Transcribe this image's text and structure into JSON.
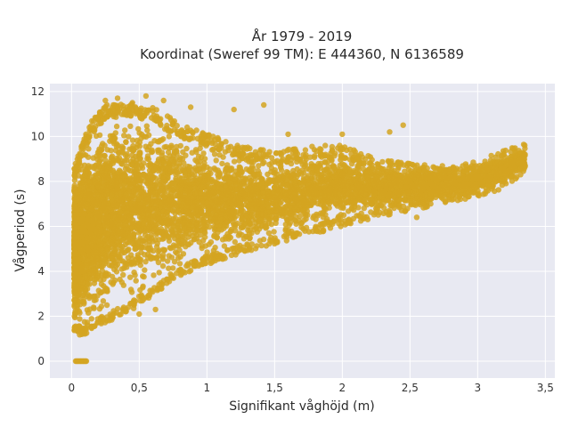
{
  "chart_data": {
    "type": "scatter",
    "title_line1": "År 1979 - 2019",
    "title_line2": "Koordinat (Sweref 99 TM): E 444360, N 6136589",
    "xlabel": "Signifikant våghöjd (m)",
    "ylabel": "Vågperiod (s)",
    "xlim": [
      -0.16,
      3.57
    ],
    "ylim": [
      -0.75,
      12.35
    ],
    "xticks": [
      0,
      0.5,
      1,
      1.5,
      2,
      2.5,
      3,
      3.5
    ],
    "xtick_labels": [
      "0",
      "0,5",
      "1",
      "1,5",
      "2",
      "2,5",
      "3",
      "3,5"
    ],
    "yticks": [
      0,
      2,
      4,
      6,
      8,
      10,
      12
    ],
    "ytick_labels": [
      "0",
      "2",
      "4",
      "6",
      "8",
      "10",
      "12"
    ],
    "grid": true,
    "marker_color": "#D4A521",
    "plot_background": "#E8E9F2",
    "density_envelope": {
      "description_points": "lower and upper boundary of the dense point cloud, in data units",
      "x": [
        0.02,
        0.08,
        0.15,
        0.25,
        0.4,
        0.6,
        0.8,
        1.0,
        1.25,
        1.5,
        1.75,
        2.0,
        2.25,
        2.5,
        2.75,
        3.0,
        3.2,
        3.35
      ],
      "lower": [
        1.3,
        1.1,
        1.35,
        1.7,
        2.1,
        2.9,
        3.8,
        4.3,
        4.8,
        5.2,
        5.6,
        6.0,
        6.4,
        6.7,
        7.0,
        7.3,
        7.7,
        8.4
      ],
      "upper": [
        8.6,
        9.8,
        10.7,
        11.4,
        11.5,
        11.3,
        10.6,
        10.1,
        9.6,
        9.3,
        9.6,
        9.6,
        9.0,
        8.8,
        8.7,
        8.9,
        9.4,
        9.7
      ]
    },
    "zero_cluster": {
      "x_range": [
        0.03,
        0.11
      ],
      "y": 0
    },
    "outliers": [
      {
        "x": 0.25,
        "y": 11.6
      },
      {
        "x": 0.34,
        "y": 11.7
      },
      {
        "x": 0.45,
        "y": 11.5
      },
      {
        "x": 0.55,
        "y": 11.8
      },
      {
        "x": 0.68,
        "y": 11.6
      },
      {
        "x": 0.88,
        "y": 11.3
      },
      {
        "x": 1.2,
        "y": 11.2
      },
      {
        "x": 1.42,
        "y": 11.4
      },
      {
        "x": 1.6,
        "y": 10.1
      },
      {
        "x": 2.0,
        "y": 10.1
      },
      {
        "x": 2.45,
        "y": 10.5
      },
      {
        "x": 2.35,
        "y": 10.2
      },
      {
        "x": 2.55,
        "y": 6.4
      },
      {
        "x": 0.62,
        "y": 2.3
      },
      {
        "x": 0.5,
        "y": 2.1
      }
    ],
    "approx_point_count": 6000
  }
}
